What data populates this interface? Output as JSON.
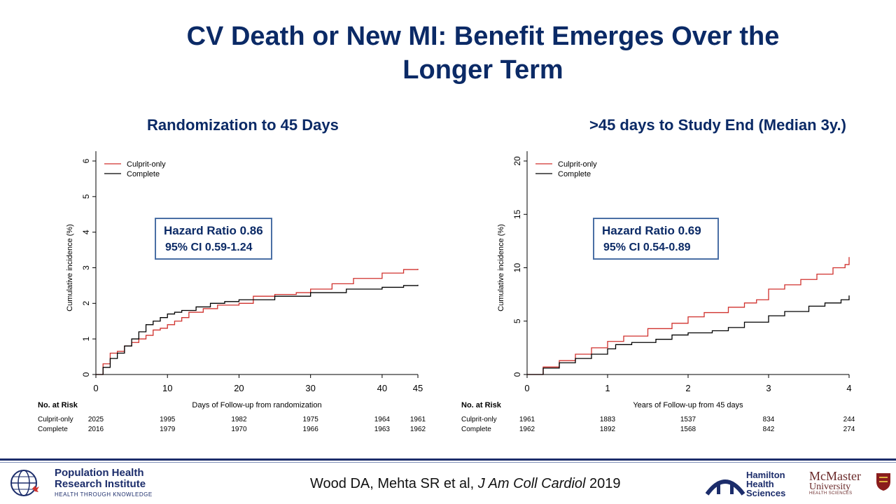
{
  "slide": {
    "title_line1": "CV Death or New MI: Benefit Emerges Over the",
    "title_line2": "Longer Term",
    "citation_pre": "Wood DA, Mehta SR et al, ",
    "citation_journal": "J Am Coll Cardiol",
    "citation_year": " 2019",
    "logo_phri_line1": "Population Health",
    "logo_phri_line2": "Research Institute",
    "logo_phri_tag": "HEALTH THROUGH KNOWLEDGE",
    "logo_hhs_line1": "Hamilton",
    "logo_hhs_line2": "Health",
    "logo_hhs_line3": "Sciences",
    "logo_mac_line1": "McMaster",
    "logo_mac_line2": "University",
    "logo_mac_tag": "HEALTH SCIENCES",
    "colors": {
      "title": "#0b2a66",
      "culprit": "#d0312d",
      "complete": "#000000",
      "box_border": "#4a6fa5"
    }
  },
  "chart_data": [
    {
      "type": "line",
      "subtitle": "Randomization to 45 Days",
      "xlabel": "Days of Follow-up from randomization",
      "ylabel": "Cumulative incidence (%)",
      "xlim": [
        0,
        45
      ],
      "ylim": [
        0,
        6
      ],
      "xticks": [
        "0",
        "10",
        "20",
        "30",
        "40",
        "45"
      ],
      "yticks": [
        "0",
        "1",
        "2",
        "3",
        "4",
        "5",
        "6"
      ],
      "legend": "top-left",
      "annotation_line1": "Hazard Ratio 0.86",
      "annotation_line2": "95% CI 0.59-1.24",
      "series": [
        {
          "name": "Culprit-only",
          "color": "#d0312d",
          "x": [
            0,
            1,
            2,
            3,
            4,
            5,
            6,
            7,
            8,
            9,
            10,
            11,
            12,
            13,
            15,
            17,
            20,
            22,
            25,
            28,
            30,
            33,
            36,
            40,
            43,
            45
          ],
          "y": [
            0,
            0.3,
            0.6,
            0.65,
            0.8,
            0.9,
            1.0,
            1.1,
            1.25,
            1.3,
            1.4,
            1.5,
            1.6,
            1.75,
            1.85,
            1.95,
            2.0,
            2.2,
            2.25,
            2.3,
            2.4,
            2.55,
            2.7,
            2.85,
            2.95,
            2.97
          ]
        },
        {
          "name": "Complete",
          "color": "#000000",
          "x": [
            0,
            1,
            2,
            3,
            4,
            5,
            6,
            7,
            8,
            9,
            10,
            11,
            12,
            14,
            16,
            18,
            20,
            25,
            30,
            35,
            40,
            43,
            45
          ],
          "y": [
            0,
            0.2,
            0.45,
            0.6,
            0.8,
            1.0,
            1.2,
            1.4,
            1.5,
            1.6,
            1.7,
            1.75,
            1.8,
            1.9,
            2.0,
            2.05,
            2.1,
            2.2,
            2.3,
            2.4,
            2.45,
            2.5,
            2.52
          ]
        }
      ],
      "risk_table": {
        "header": "No. at Risk",
        "rows": [
          {
            "label": "Culprit-only",
            "values": [
              "2025",
              "1995",
              "1982",
              "1975",
              "1964",
              "1961"
            ]
          },
          {
            "label": "Complete",
            "values": [
              "2016",
              "1979",
              "1970",
              "1966",
              "1963",
              "1962"
            ]
          }
        ]
      }
    },
    {
      "type": "line",
      "subtitle": ">45 days to Study End (Median 3y.)",
      "xlabel": "Years of Follow-up from 45 days",
      "ylabel": "Cumulative incidence (%)",
      "xlim": [
        0,
        4
      ],
      "ylim": [
        0,
        20
      ],
      "xticks": [
        "0",
        "1",
        "2",
        "3",
        "4"
      ],
      "yticks": [
        "0",
        "5",
        "10",
        "15",
        "20"
      ],
      "legend": "top-left",
      "annotation_line1": "Hazard Ratio 0.69",
      "annotation_line2": "95% CI 0.54-0.89",
      "series": [
        {
          "name": "Culprit-only",
          "color": "#d0312d",
          "x": [
            0,
            0.2,
            0.4,
            0.6,
            0.8,
            1.0,
            1.2,
            1.5,
            1.8,
            2.0,
            2.2,
            2.5,
            2.7,
            2.85,
            3.0,
            3.2,
            3.4,
            3.6,
            3.8,
            3.95,
            4.0
          ],
          "y": [
            0,
            0.7,
            1.3,
            1.9,
            2.5,
            3.1,
            3.6,
            4.3,
            4.8,
            5.4,
            5.8,
            6.3,
            6.7,
            7.0,
            8.0,
            8.4,
            8.9,
            9.4,
            10.0,
            10.3,
            11.0
          ]
        },
        {
          "name": "Complete",
          "color": "#000000",
          "x": [
            0,
            0.2,
            0.4,
            0.6,
            0.8,
            1.0,
            1.1,
            1.3,
            1.6,
            1.8,
            2.0,
            2.3,
            2.5,
            2.7,
            3.0,
            3.2,
            3.5,
            3.7,
            3.9,
            4.0
          ],
          "y": [
            0,
            0.6,
            1.1,
            1.5,
            1.9,
            2.4,
            2.8,
            3.0,
            3.3,
            3.7,
            3.9,
            4.1,
            4.4,
            4.9,
            5.5,
            5.9,
            6.4,
            6.7,
            7.0,
            7.4
          ]
        }
      ],
      "risk_table": {
        "header": "No. at Risk",
        "rows": [
          {
            "label": "Culprit-only",
            "values": [
              "1961",
              "1883",
              "1537",
              "834",
              "244"
            ]
          },
          {
            "label": "Complete",
            "values": [
              "1962",
              "1892",
              "1568",
              "842",
              "274"
            ]
          }
        ]
      }
    }
  ]
}
